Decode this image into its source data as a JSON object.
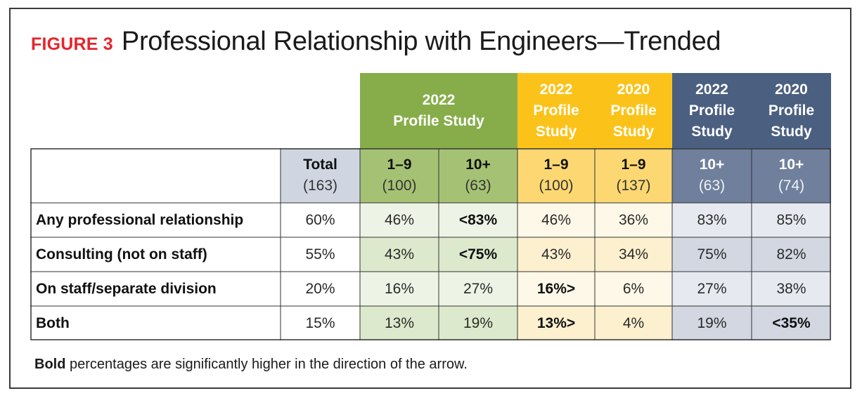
{
  "figure": {
    "label": "FIGURE 3",
    "title": "Professional Relationship with Engineers—Trended"
  },
  "colors": {
    "green_dark": "#86ad4a",
    "green_mid": "#a5c274",
    "green_light": "#dde9cc",
    "green_pale": "#eef4e5",
    "yellow_dark": "#fbc31a",
    "yellow_mid": "#fdd872",
    "yellow_light": "#fdf0cf",
    "yellow_pale": "#fef8e8",
    "navy_dark": "#4b5f80",
    "navy_mid": "#6f7f9c",
    "navy_light": "#d2d7e2",
    "navy_pale": "#e6e9f0",
    "total_bg": "#cfd6e2",
    "accent_red": "#e3262b"
  },
  "chart_data": {
    "type": "table",
    "title": "Professional Relationship with Engineers—Trended",
    "group_headers": [
      {
        "label": "2022\nProfile Study",
        "span": [
          "1–9 (100)",
          "10+ (63)"
        ]
      },
      {
        "label": "2022\nProfile\nStudy",
        "span": [
          "1–9 (100)"
        ]
      },
      {
        "label": "2020\nProfile\nStudy",
        "span": [
          "1–9 (137)"
        ]
      },
      {
        "label": "2022\nProfile\nStudy",
        "span": [
          "10+ (63)"
        ]
      },
      {
        "label": "2020\nProfile\nStudy",
        "span": [
          "10+ (74)"
        ]
      }
    ],
    "columns": [
      {
        "label": "Total",
        "n": "(163)"
      },
      {
        "label": "1–9",
        "n": "(100)"
      },
      {
        "label": "10+",
        "n": "(63)"
      },
      {
        "label": "1–9",
        "n": "(100)"
      },
      {
        "label": "1–9",
        "n": "(137)"
      },
      {
        "label": "10+",
        "n": "(63)"
      },
      {
        "label": "10+",
        "n": "(74)"
      }
    ],
    "rows": [
      {
        "label": "Any professional relationship",
        "values": [
          "60%",
          "46%",
          "<83%",
          "46%",
          "36%",
          "83%",
          "85%"
        ],
        "bold": [
          false,
          false,
          true,
          false,
          false,
          false,
          false
        ]
      },
      {
        "label": "Consulting (not on staff)",
        "values": [
          "55%",
          "43%",
          "<75%",
          "43%",
          "34%",
          "75%",
          "82%"
        ],
        "bold": [
          false,
          false,
          true,
          false,
          false,
          false,
          false
        ]
      },
      {
        "label": "On staff/separate division",
        "values": [
          "20%",
          "16%",
          "27%",
          "16%>",
          "6%",
          "27%",
          "38%"
        ],
        "bold": [
          false,
          false,
          false,
          true,
          false,
          false,
          false
        ]
      },
      {
        "label": "Both",
        "values": [
          "15%",
          "13%",
          "19%",
          "13%>",
          "4%",
          "19%",
          "<35%"
        ],
        "bold": [
          false,
          false,
          false,
          true,
          false,
          false,
          true
        ]
      }
    ]
  },
  "footnote": {
    "bold": "Bold",
    "rest": " percentages are significantly higher in the direction of the arrow."
  }
}
